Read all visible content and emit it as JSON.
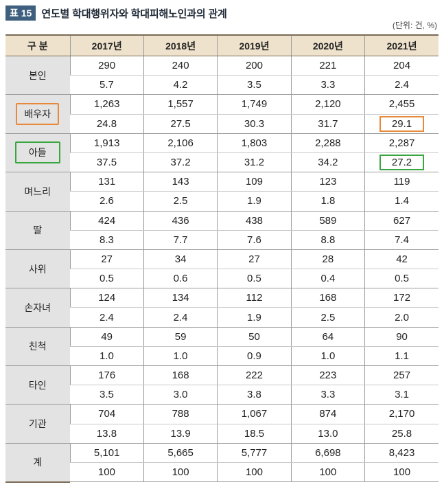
{
  "table_number": "표 15",
  "title": "연도별 학대행위자와 학대피해노인과의 관계",
  "unit": "(단위: 건, %)",
  "header": [
    "구 분",
    "2017년",
    "2018년",
    "2019년",
    "2020년",
    "2021년"
  ],
  "rows": [
    {
      "label": "본인",
      "counts": [
        "290",
        "240",
        "200",
        "221",
        "204"
      ],
      "pcts": [
        "5.7",
        "4.2",
        "3.5",
        "3.3",
        "2.4"
      ]
    },
    {
      "label": "배우자",
      "counts": [
        "1,263",
        "1,557",
        "1,749",
        "2,120",
        "2,455"
      ],
      "pcts": [
        "24.8",
        "27.5",
        "30.3",
        "31.7",
        "29.1"
      ],
      "highlight": "orange"
    },
    {
      "label": "아들",
      "counts": [
        "1,913",
        "2,106",
        "1,803",
        "2,288",
        "2,287"
      ],
      "pcts": [
        "37.5",
        "37.2",
        "31.2",
        "34.2",
        "27.2"
      ],
      "highlight": "green"
    },
    {
      "label": "며느리",
      "counts": [
        "131",
        "143",
        "109",
        "123",
        "119"
      ],
      "pcts": [
        "2.6",
        "2.5",
        "1.9",
        "1.8",
        "1.4"
      ]
    },
    {
      "label": "딸",
      "counts": [
        "424",
        "436",
        "438",
        "589",
        "627"
      ],
      "pcts": [
        "8.3",
        "7.7",
        "7.6",
        "8.8",
        "7.4"
      ]
    },
    {
      "label": "사위",
      "counts": [
        "27",
        "34",
        "27",
        "28",
        "42"
      ],
      "pcts": [
        "0.5",
        "0.6",
        "0.5",
        "0.4",
        "0.5"
      ]
    },
    {
      "label": "손자녀",
      "counts": [
        "124",
        "134",
        "112",
        "168",
        "172"
      ],
      "pcts": [
        "2.4",
        "2.4",
        "1.9",
        "2.5",
        "2.0"
      ]
    },
    {
      "label": "친척",
      "counts": [
        "49",
        "59",
        "50",
        "64",
        "90"
      ],
      "pcts": [
        "1.0",
        "1.0",
        "0.9",
        "1.0",
        "1.1"
      ]
    },
    {
      "label": "타인",
      "counts": [
        "176",
        "168",
        "222",
        "223",
        "257"
      ],
      "pcts": [
        "3.5",
        "3.0",
        "3.8",
        "3.3",
        "3.1"
      ]
    },
    {
      "label": "기관",
      "counts": [
        "704",
        "788",
        "1,067",
        "874",
        "2,170"
      ],
      "pcts": [
        "13.8",
        "13.9",
        "18.5",
        "13.0",
        "25.8"
      ]
    },
    {
      "label": "계",
      "counts": [
        "5,101",
        "5,665",
        "5,777",
        "6,698",
        "8,423"
      ],
      "pcts": [
        "100",
        "100",
        "100",
        "100",
        "100"
      ]
    }
  ],
  "colors": {
    "header_bg": "#efe2cc",
    "label_bg": "#e3e3e3",
    "badge_bg": "#3f5f7f",
    "highlight_orange": "#e8893a",
    "highlight_green": "#3aa63f"
  }
}
